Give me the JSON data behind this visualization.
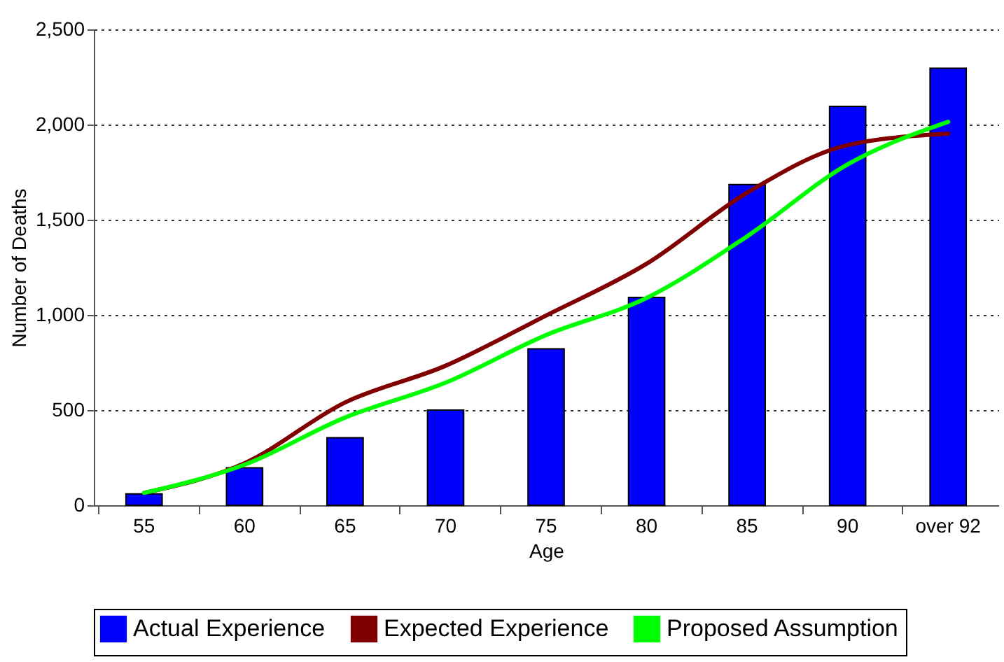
{
  "chart_data": {
    "type": "bar",
    "xlabel": "Age",
    "ylabel": "Number of Deaths",
    "categories": [
      "55",
      "60",
      "65",
      "70",
      "75",
      "80",
      "85",
      "90",
      "over 92"
    ],
    "series": [
      {
        "name": "Actual Experience",
        "color": "#0000ff",
        "values": [
          60,
          197,
          355,
          500,
          822,
          1092,
          1685,
          2096,
          2296
        ]
      },
      {
        "name": "Expected Experience",
        "type": "line",
        "color": "#800000",
        "values": [
          65,
          221,
          540,
          733,
          997,
          1269,
          1642,
          1892,
          1952
        ]
      },
      {
        "name": "Proposed Assumption",
        "type": "line",
        "color": "#00ff00",
        "values": [
          65,
          213,
          461,
          644,
          894,
          1089,
          1413,
          1791,
          2014
        ]
      }
    ],
    "ylim": [
      0,
      2500
    ],
    "yticks": [
      0,
      {
        "value": 500,
        "label": "500"
      },
      {
        "value": 1000,
        "label": "1,000"
      },
      {
        "value": 1500,
        "label": "1,500"
      },
      {
        "value": 2000,
        "label": "2,000"
      },
      {
        "value": 2500,
        "label": "2,500"
      }
    ],
    "grid": "y",
    "legend": "bottom",
    "marker": "none",
    "line_style": "solid"
  }
}
